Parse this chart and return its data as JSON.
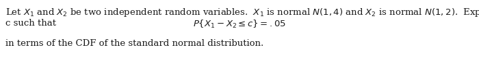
{
  "line1": "Let $X_1$ and $X_2$ be two independent random variables.  $X_1$ is normal $N(1,4)$ and $X_2$ is normal $N(1,2)$.  Express",
  "line2": "c such that",
  "line3": "$P\\{X_1 - X_2 \\leq c\\} = .05$",
  "line4": "in terms of the CDF of the standard normal distribution.",
  "bg_color": "#ffffff",
  "text_color": "#1a1a1a",
  "fontsize": 9.5,
  "fig_width": 7.0,
  "fig_height": 0.86,
  "dpi": 100
}
